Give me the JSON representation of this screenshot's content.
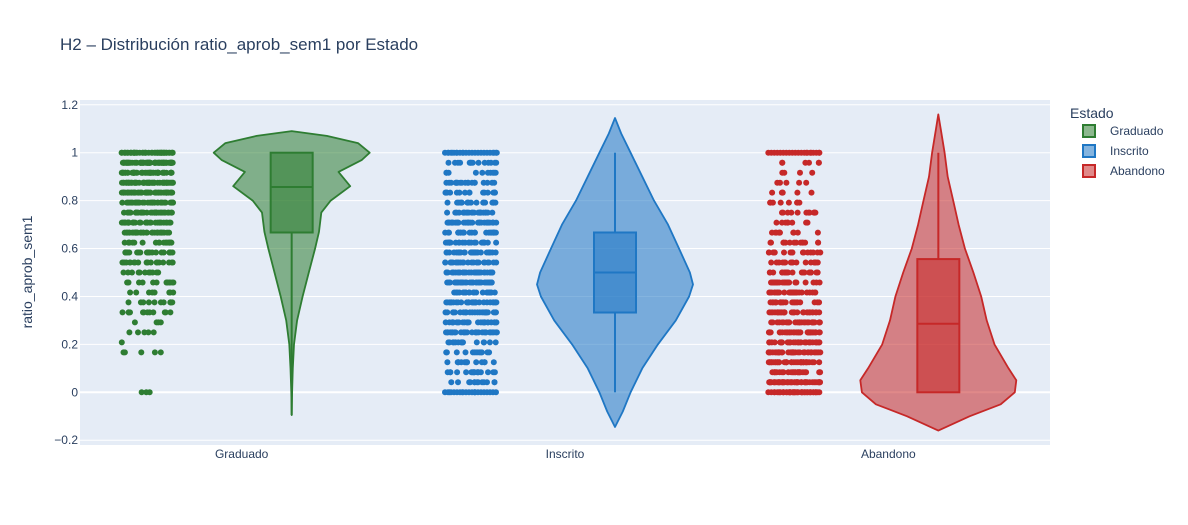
{
  "chart_data": {
    "type": "violin",
    "title": "H2 – Distribución ratio_aprob_sem1 por Estado",
    "xlabel": "",
    "ylabel": "ratio_aprob_sem1",
    "ylim": [
      -0.22,
      1.22
    ],
    "yticks": [
      -0.2,
      0,
      0.2,
      0.4,
      0.6,
      0.8,
      1,
      1.2
    ],
    "ytick_labels": [
      "−0.2",
      "0",
      "0.2",
      "0.4",
      "0.6",
      "0.8",
      "1",
      "1.2"
    ],
    "grid": true,
    "legend": {
      "title": "Estado",
      "placement": "top-right"
    },
    "categories": [
      "Graduado",
      "Inscrito",
      "Abandono"
    ],
    "series": [
      {
        "name": "Graduado",
        "color": "#2e7d32",
        "box": {
          "q1": 0.667,
          "median": 0.857,
          "q3": 1.0,
          "whisker_low": -0.095,
          "whisker_high": 1.0
        },
        "points_y_range": [
          0.0,
          1.0
        ],
        "density": [
          [
            -0.095,
            0.0
          ],
          [
            0.0,
            0.005
          ],
          [
            0.1,
            0.015
          ],
          [
            0.2,
            0.03
          ],
          [
            0.3,
            0.07
          ],
          [
            0.4,
            0.14
          ],
          [
            0.5,
            0.22
          ],
          [
            0.6,
            0.3
          ],
          [
            0.67,
            0.35
          ],
          [
            0.75,
            0.38
          ],
          [
            0.8,
            0.5
          ],
          [
            0.86,
            0.75
          ],
          [
            0.92,
            0.6
          ],
          [
            0.97,
            0.9
          ],
          [
            1.0,
            1.0
          ],
          [
            1.04,
            0.85
          ],
          [
            1.07,
            0.45
          ],
          [
            1.09,
            0.0
          ]
        ]
      },
      {
        "name": "Inscrito",
        "color": "#1f77c4",
        "box": {
          "q1": 0.333,
          "median": 0.5,
          "q3": 0.667,
          "whisker_low": 0.0,
          "whisker_high": 1.0
        },
        "points_y_range": [
          0.0,
          1.0
        ],
        "density": [
          [
            -0.145,
            0.0
          ],
          [
            -0.08,
            0.1
          ],
          [
            0.0,
            0.2
          ],
          [
            0.1,
            0.35
          ],
          [
            0.2,
            0.55
          ],
          [
            0.3,
            0.78
          ],
          [
            0.4,
            0.95
          ],
          [
            0.45,
            1.0
          ],
          [
            0.5,
            0.96
          ],
          [
            0.6,
            0.82
          ],
          [
            0.7,
            0.68
          ],
          [
            0.8,
            0.5
          ],
          [
            0.9,
            0.35
          ],
          [
            1.0,
            0.2
          ],
          [
            1.08,
            0.08
          ],
          [
            1.145,
            0.0
          ]
        ]
      },
      {
        "name": "Abandono",
        "color": "#c62828",
        "box": {
          "q1": 0.0,
          "median": 0.286,
          "q3": 0.556,
          "whisker_low": 0.0,
          "whisker_high": 1.0
        },
        "points_y_range": [
          0.0,
          1.0
        ],
        "density": [
          [
            -0.16,
            0.0
          ],
          [
            -0.1,
            0.4
          ],
          [
            -0.05,
            0.8
          ],
          [
            0.0,
            0.98
          ],
          [
            0.05,
            1.0
          ],
          [
            0.1,
            0.9
          ],
          [
            0.2,
            0.72
          ],
          [
            0.3,
            0.62
          ],
          [
            0.4,
            0.55
          ],
          [
            0.5,
            0.45
          ],
          [
            0.6,
            0.34
          ],
          [
            0.7,
            0.26
          ],
          [
            0.8,
            0.19
          ],
          [
            0.9,
            0.12
          ],
          [
            1.0,
            0.08
          ],
          [
            1.1,
            0.03
          ],
          [
            1.16,
            0.0
          ]
        ]
      }
    ]
  }
}
